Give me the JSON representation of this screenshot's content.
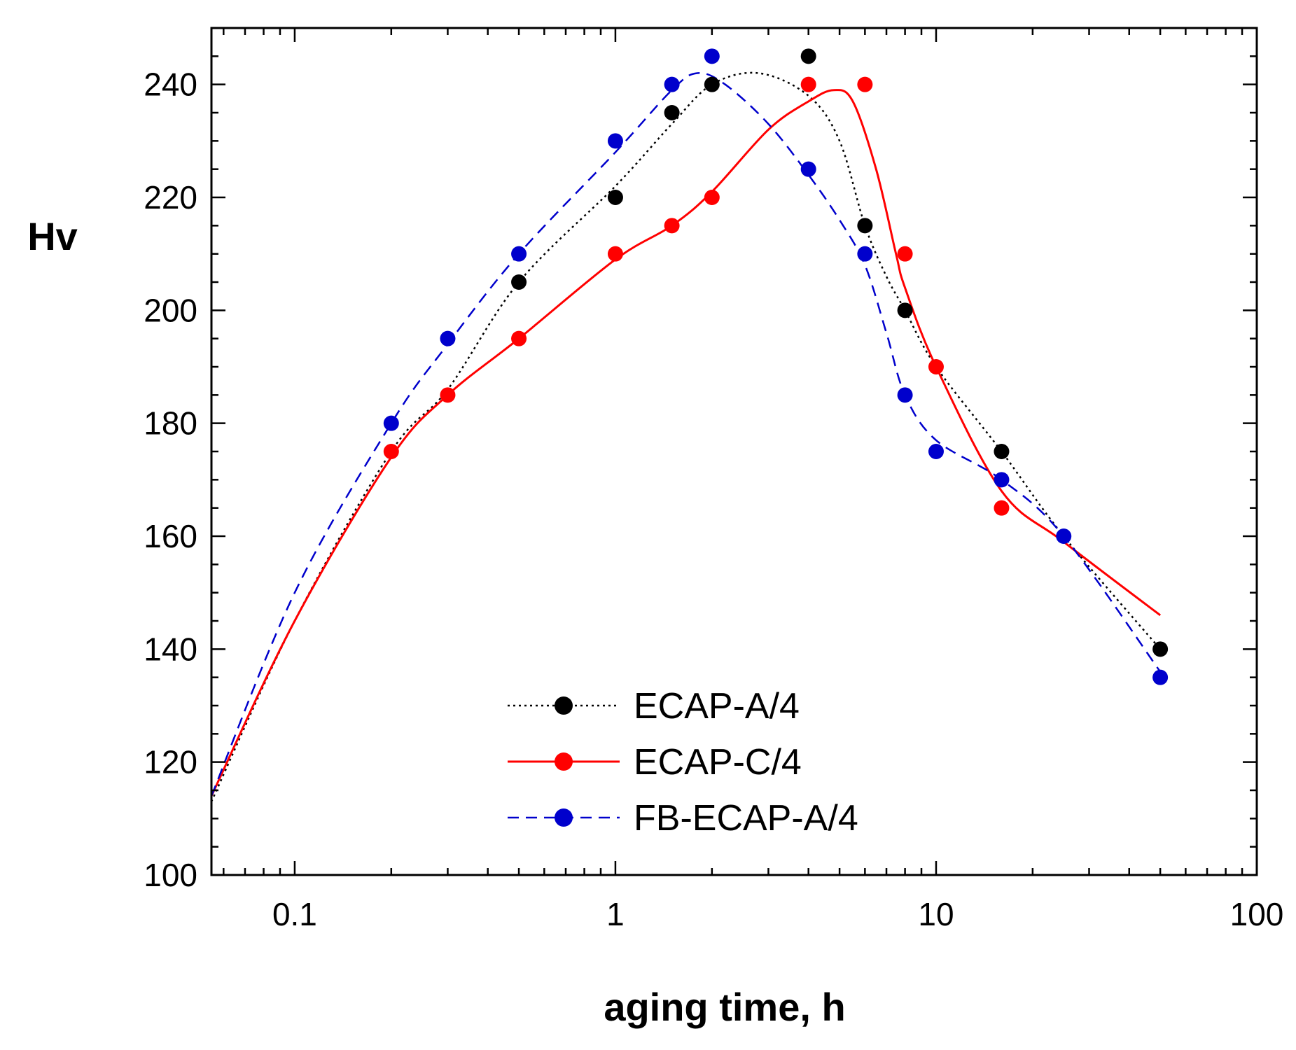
{
  "chart_data": {
    "type": "line",
    "title": "",
    "xlabel": "aging time, h",
    "ylabel": "Hv",
    "x_scale": "log",
    "xlim": [
      0.055,
      100
    ],
    "ylim": [
      100,
      250
    ],
    "x_ticks": [
      {
        "value": 0.1,
        "label": "0.1"
      },
      {
        "value": 1,
        "label": "1"
      },
      {
        "value": 10,
        "label": "10"
      },
      {
        "value": 100,
        "label": "100"
      }
    ],
    "y_ticks": [
      {
        "value": 100,
        "label": "100"
      },
      {
        "value": 120,
        "label": "120"
      },
      {
        "value": 140,
        "label": "140"
      },
      {
        "value": 160,
        "label": "160"
      },
      {
        "value": 180,
        "label": "180"
      },
      {
        "value": 200,
        "label": "200"
      },
      {
        "value": 220,
        "label": "220"
      },
      {
        "value": 240,
        "label": "240"
      }
    ],
    "grid": false,
    "legend_position": "bottom-center",
    "series": [
      {
        "name": "ECAP-A/4",
        "color": "#000000",
        "line_style": "dotted",
        "x": [
          0.5,
          1,
          1.5,
          2,
          4,
          6,
          8,
          16,
          50
        ],
        "y": [
          205,
          220,
          235,
          240,
          245,
          215,
          200,
          175,
          140
        ],
        "curve_x": [
          0.055,
          0.1,
          0.2,
          0.3,
          0.5,
          1,
          1.5,
          2,
          2.8,
          4,
          5,
          6,
          7,
          8,
          10,
          16,
          25,
          50
        ],
        "curve_y": [
          113,
          145,
          175,
          186,
          205,
          222,
          233,
          240,
          242,
          238,
          230,
          215,
          206,
          200,
          190,
          175,
          160,
          140
        ]
      },
      {
        "name": "ECAP-C/4",
        "color": "#ff0000",
        "line_style": "solid",
        "x": [
          0.2,
          0.3,
          0.5,
          1,
          1.5,
          2,
          4,
          6,
          8,
          10,
          16
        ],
        "y": [
          175,
          185,
          195,
          210,
          215,
          220,
          240,
          240,
          210,
          190,
          165
        ],
        "curve_x": [
          0.055,
          0.1,
          0.2,
          0.3,
          0.5,
          1,
          1.5,
          2,
          3,
          4,
          4.8,
          5.5,
          6.5,
          7.5,
          8,
          10,
          16,
          25,
          50
        ],
        "curve_y": [
          114,
          145,
          174,
          185,
          195,
          209,
          215,
          221,
          232,
          237,
          239,
          237,
          225,
          210,
          204,
          190,
          168,
          159,
          146
        ]
      },
      {
        "name": "FB-ECAP-A/4",
        "color": "#0000cc",
        "line_style": "dashed",
        "x": [
          0.2,
          0.3,
          0.5,
          1,
          1.5,
          2,
          4,
          6,
          8,
          10,
          16,
          25,
          50
        ],
        "y": [
          180,
          195,
          210,
          230,
          240,
          245,
          225,
          210,
          185,
          175,
          170,
          160,
          135
        ],
        "curve_x": [
          0.055,
          0.1,
          0.2,
          0.3,
          0.5,
          1,
          1.5,
          1.8,
          2.2,
          3,
          4,
          5,
          6,
          7,
          8,
          10,
          16,
          25,
          50
        ],
        "curve_y": [
          114,
          150,
          180,
          194,
          210,
          228,
          239,
          242,
          240,
          233,
          224,
          216,
          208,
          196,
          185,
          177,
          170,
          160,
          136
        ]
      }
    ]
  }
}
